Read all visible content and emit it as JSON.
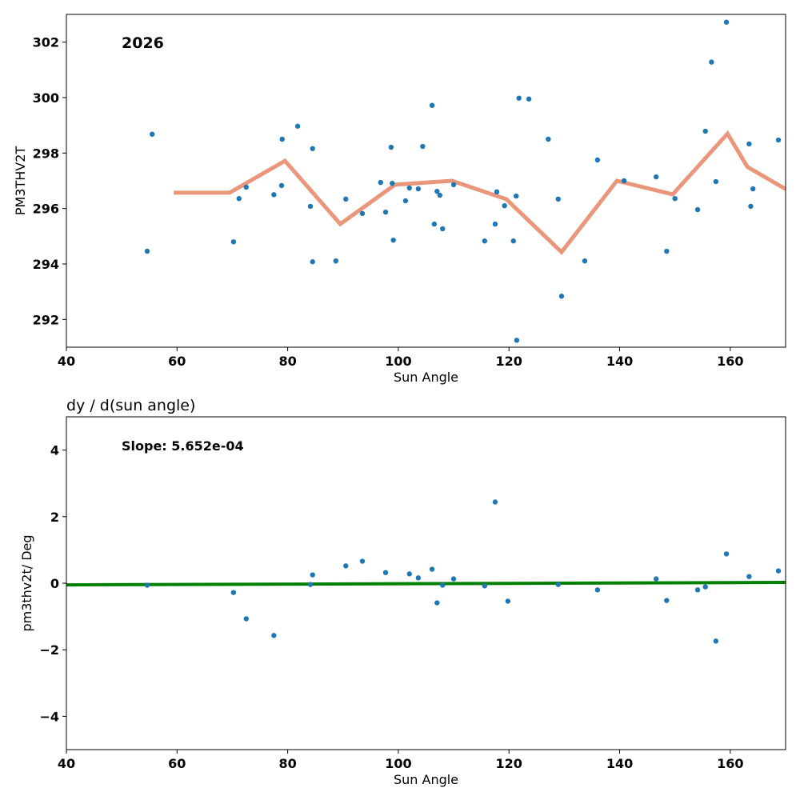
{
  "chart_data": [
    {
      "type": "scatter",
      "title": "",
      "annotation": "2026",
      "xlabel": "Sun Angle",
      "ylabel": "PM3THV2T",
      "xlim": [
        40,
        170
      ],
      "ylim": [
        291,
        303
      ],
      "xticks": [
        40,
        60,
        80,
        100,
        120,
        140,
        160
      ],
      "yticks": [
        292,
        294,
        296,
        298,
        300,
        302
      ],
      "colors": {
        "points": "#1f77b4",
        "line": "#e9967a"
      },
      "points": [
        [
          54.6,
          294.46
        ],
        [
          55.5,
          298.68
        ],
        [
          70.2,
          294.8
        ],
        [
          71.2,
          296.36
        ],
        [
          72.5,
          296.77
        ],
        [
          77.5,
          296.5
        ],
        [
          78.9,
          296.83
        ],
        [
          79.0,
          298.5
        ],
        [
          81.8,
          298.97
        ],
        [
          84.1,
          296.08
        ],
        [
          84.5,
          298.16
        ],
        [
          84.5,
          294.08
        ],
        [
          88.7,
          294.11
        ],
        [
          90.5,
          296.34
        ],
        [
          93.5,
          295.82
        ],
        [
          96.8,
          296.94
        ],
        [
          97.7,
          295.87
        ],
        [
          98.7,
          298.21
        ],
        [
          98.9,
          296.91
        ],
        [
          99.1,
          294.86
        ],
        [
          101.3,
          296.28
        ],
        [
          102.0,
          296.74
        ],
        [
          103.6,
          296.71
        ],
        [
          104.4,
          298.24
        ],
        [
          106.1,
          299.72
        ],
        [
          106.5,
          295.44
        ],
        [
          107.0,
          296.62
        ],
        [
          107.5,
          296.48
        ],
        [
          108.0,
          295.27
        ],
        [
          110.0,
          296.86
        ],
        [
          115.6,
          294.83
        ],
        [
          117.5,
          295.44
        ],
        [
          117.8,
          296.6
        ],
        [
          119.2,
          296.1
        ],
        [
          120.8,
          294.83
        ],
        [
          121.3,
          296.45
        ],
        [
          121.4,
          291.25
        ],
        [
          121.8,
          299.98
        ],
        [
          123.6,
          299.95
        ],
        [
          127.1,
          298.5
        ],
        [
          128.9,
          296.34
        ],
        [
          129.5,
          292.84
        ],
        [
          133.7,
          294.11
        ],
        [
          136.0,
          297.75
        ],
        [
          140.8,
          297.0
        ],
        [
          146.6,
          297.14
        ],
        [
          148.5,
          294.46
        ],
        [
          150.0,
          296.36
        ],
        [
          154.1,
          295.96
        ],
        [
          155.5,
          298.79
        ],
        [
          156.6,
          301.28
        ],
        [
          157.4,
          296.97
        ],
        [
          159.3,
          302.72
        ],
        [
          163.4,
          298.33
        ],
        [
          163.7,
          296.08
        ],
        [
          164.1,
          296.71
        ],
        [
          168.7,
          298.47
        ]
      ],
      "line": [
        [
          59.4,
          296.57
        ],
        [
          69.5,
          296.57
        ],
        [
          79.5,
          297.72
        ],
        [
          89.5,
          295.44
        ],
        [
          99.4,
          296.86
        ],
        [
          109.7,
          297.0
        ],
        [
          119.5,
          296.34
        ],
        [
          129.5,
          294.43
        ],
        [
          139.5,
          297.0
        ],
        [
          149.6,
          296.51
        ],
        [
          159.5,
          298.7
        ],
        [
          163.1,
          297.5
        ],
        [
          170,
          296.7
        ]
      ]
    },
    {
      "type": "scatter",
      "title": "dy / d(sun angle)",
      "annotation": "Slope: 5.652e-04",
      "xlabel": "Sun Angle",
      "ylabel": "pm3thv2t/ Deg",
      "xlim": [
        40,
        170
      ],
      "ylim": [
        -5,
        5
      ],
      "xticks": [
        40,
        60,
        80,
        100,
        120,
        140,
        160
      ],
      "yticks": [
        -4,
        -2,
        0,
        2,
        4
      ],
      "ytick_labels": [
        "−4",
        "−2",
        "0",
        "2",
        "4"
      ],
      "colors": {
        "points": "#1f77b4",
        "line": "#008000"
      },
      "points": [
        [
          54.6,
          -0.06
        ],
        [
          70.2,
          -0.28
        ],
        [
          72.5,
          -1.07
        ],
        [
          77.5,
          -1.57
        ],
        [
          84.1,
          -0.04
        ],
        [
          84.5,
          0.25
        ],
        [
          90.5,
          0.52
        ],
        [
          93.5,
          0.66
        ],
        [
          97.7,
          0.32
        ],
        [
          102.0,
          0.28
        ],
        [
          103.6,
          0.16
        ],
        [
          106.1,
          0.42
        ],
        [
          107.0,
          -0.59
        ],
        [
          108.0,
          -0.06
        ],
        [
          110.0,
          0.13
        ],
        [
          115.6,
          -0.08
        ],
        [
          117.5,
          2.44
        ],
        [
          119.8,
          -0.54
        ],
        [
          128.9,
          -0.04
        ],
        [
          136.0,
          -0.2
        ],
        [
          146.6,
          0.13
        ],
        [
          148.5,
          -0.52
        ],
        [
          154.1,
          -0.2
        ],
        [
          155.5,
          -0.11
        ],
        [
          157.4,
          -1.74
        ],
        [
          159.3,
          0.88
        ],
        [
          163.4,
          0.2
        ],
        [
          168.7,
          0.37
        ]
      ],
      "line": [
        [
          40,
          -0.05
        ],
        [
          170,
          0.023
        ]
      ]
    }
  ]
}
